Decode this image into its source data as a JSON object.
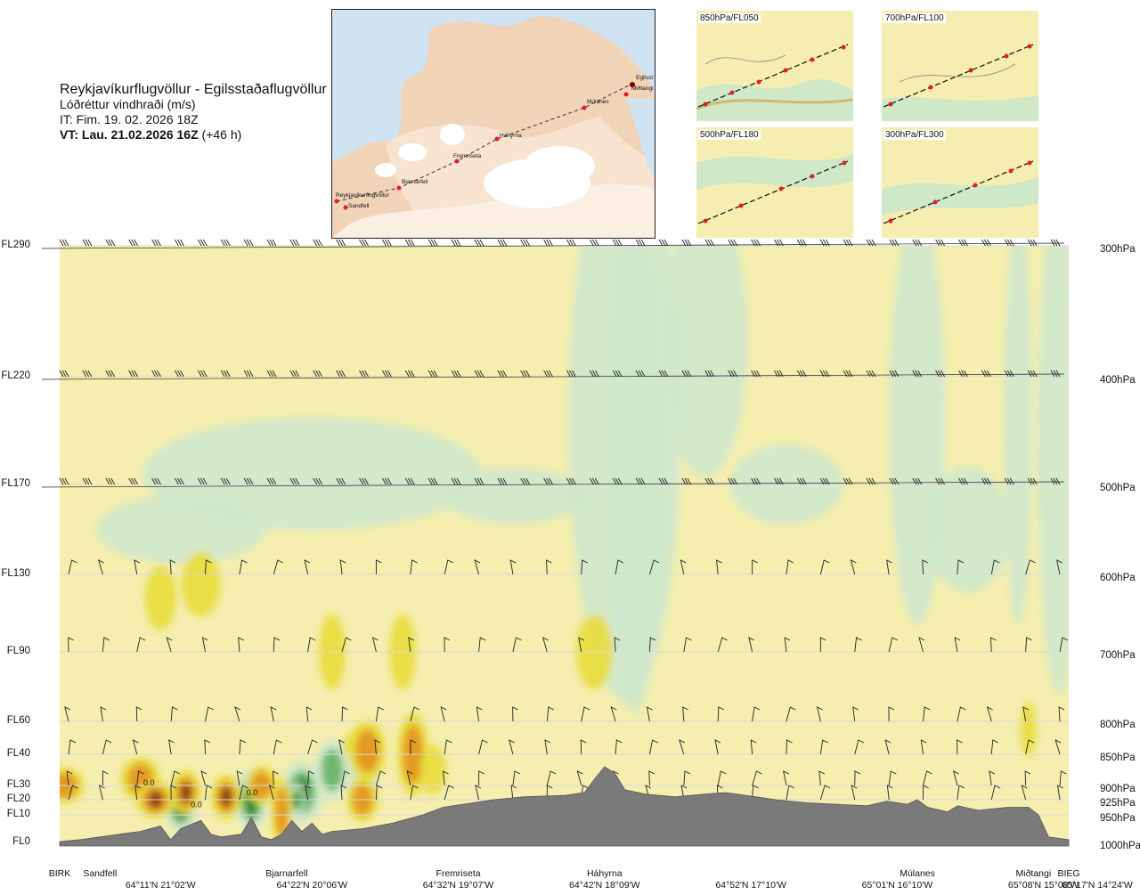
{
  "header": {
    "route": "Reykjavíkurflugvöllur - Egilsstaðaflugvöllur",
    "quantity": "Lóðréttur vindhraði (m/s)",
    "issue_time": "IT: Fim. 19. 02. 2026 18Z",
    "valid_time_bold": "VT: Lau. 21.02.2026 16Z",
    "valid_time_offset": "(+46 h)"
  },
  "map": {
    "waypoints": [
      "Reykjavíkurflugvöllur",
      "Sandfell",
      "Bjarnarfell",
      "Fremriseta",
      "Háhyrna",
      "Múlanes",
      "Miðtangi",
      "Egilsst"
    ]
  },
  "thumbnails": [
    {
      "label": "850hPa/FL050"
    },
    {
      "label": "700hPa/FL100"
    },
    {
      "label": "500hPa/FL180"
    },
    {
      "label": "300hPa/FL300"
    }
  ],
  "chart_data": {
    "type": "heatmap",
    "variable": "Lóðréttur vindhraði (m/s)",
    "y_levels": [
      {
        "fl": "FL290",
        "hpa": "300hPa",
        "z": 290
      },
      {
        "fl": "FL220",
        "hpa": "400hPa",
        "z": 220
      },
      {
        "fl": "FL170",
        "hpa": "500hPa",
        "z": 170
      },
      {
        "fl": "FL130",
        "hpa": "600hPa",
        "z": 130
      },
      {
        "fl": "FL90",
        "hpa": "700hPa",
        "z": 90
      },
      {
        "fl": "FL60",
        "hpa": "800hPa",
        "z": 60
      },
      {
        "fl": "FL40",
        "hpa": "850hPa",
        "z": 40
      },
      {
        "fl": "FL30",
        "hpa": "900hPa",
        "z": 30
      },
      {
        "fl": "FL20",
        "hpa": "925hPa",
        "z": 20
      },
      {
        "fl": "FL10",
        "hpa": "950hPa",
        "z": 10
      },
      {
        "fl": "FL0",
        "hpa": "1000hPa",
        "z": 0
      }
    ],
    "x_waypoints": [
      {
        "name": "BIRK",
        "pos": 0.0
      },
      {
        "name": "Sandfell",
        "pos": 0.04
      },
      {
        "name": "Bjarnarfell",
        "pos": 0.225
      },
      {
        "name": "Fremriseta",
        "pos": 0.395
      },
      {
        "name": "Háhyrna",
        "pos": 0.54
      },
      {
        "name": "Múlanes",
        "pos": 0.85
      },
      {
        "name": "Miðtangi",
        "pos": 0.965
      },
      {
        "name": "BIEG",
        "pos": 1.0
      }
    ],
    "x_coords": [
      {
        "label": "64°11'N 21°02'W",
        "pos": 0.1
      },
      {
        "label": "64°22'N 20°06'W",
        "pos": 0.25
      },
      {
        "label": "64°32'N 19°07'W",
        "pos": 0.395
      },
      {
        "label": "64°42'N 18°09'W",
        "pos": 0.54
      },
      {
        "label": "64°52'N 17°10'W",
        "pos": 0.685
      },
      {
        "label": "65°01'N 16°10'W",
        "pos": 0.83
      },
      {
        "label": "65°08'N 15°08'W",
        "pos": 0.975
      },
      {
        "label": "65°17'N 14°24'W",
        "pos": 1.03
      }
    ],
    "contour_labels": [
      "0.0",
      "0.0",
      "0.0"
    ],
    "terrain_fl": [
      [
        0.0,
        0.3
      ],
      [
        0.02,
        1
      ],
      [
        0.04,
        2
      ],
      [
        0.06,
        3
      ],
      [
        0.08,
        4
      ],
      [
        0.1,
        6
      ],
      [
        0.11,
        1
      ],
      [
        0.12,
        5
      ],
      [
        0.14,
        8
      ],
      [
        0.15,
        3
      ],
      [
        0.16,
        2
      ],
      [
        0.18,
        3
      ],
      [
        0.19,
        9
      ],
      [
        0.2,
        2
      ],
      [
        0.21,
        1
      ],
      [
        0.22,
        3
      ],
      [
        0.23,
        8
      ],
      [
        0.24,
        4
      ],
      [
        0.25,
        7
      ],
      [
        0.26,
        3
      ],
      [
        0.27,
        4
      ],
      [
        0.3,
        5
      ],
      [
        0.33,
        7
      ],
      [
        0.36,
        10
      ],
      [
        0.38,
        15
      ],
      [
        0.4,
        17
      ],
      [
        0.43,
        20
      ],
      [
        0.46,
        22
      ],
      [
        0.5,
        23
      ],
      [
        0.52,
        25
      ],
      [
        0.53,
        32
      ],
      [
        0.54,
        36
      ],
      [
        0.55,
        34
      ],
      [
        0.56,
        27
      ],
      [
        0.58,
        24
      ],
      [
        0.61,
        22
      ],
      [
        0.64,
        24
      ],
      [
        0.66,
        25
      ],
      [
        0.69,
        22
      ],
      [
        0.71,
        20
      ],
      [
        0.74,
        18
      ],
      [
        0.77,
        17
      ],
      [
        0.8,
        16
      ],
      [
        0.82,
        19
      ],
      [
        0.84,
        17
      ],
      [
        0.85,
        20
      ],
      [
        0.86,
        15
      ],
      [
        0.88,
        12
      ],
      [
        0.89,
        16
      ],
      [
        0.91,
        13
      ],
      [
        0.94,
        15
      ],
      [
        0.96,
        15
      ],
      [
        0.97,
        10
      ],
      [
        0.98,
        2
      ],
      [
        1.0,
        1
      ]
    ],
    "green_blobs": [
      [
        0.12,
        16,
        0.012,
        9,
        0.9
      ],
      [
        0.19,
        20,
        0.012,
        12,
        0.9
      ],
      [
        0.24,
        25,
        0.015,
        14,
        0.9
      ],
      [
        0.235,
        20,
        0.006,
        6,
        0.9
      ],
      [
        0.27,
        35,
        0.012,
        8,
        0.6
      ],
      [
        0.3,
        35,
        0.012,
        10,
        0.5
      ],
      [
        0.56,
        200,
        0.04,
        100,
        0.25
      ],
      [
        0.57,
        180,
        0.02,
        90,
        0.25
      ],
      [
        0.64,
        240,
        0.03,
        50,
        0.2
      ],
      [
        0.85,
        200,
        0.02,
        70,
        0.25
      ],
      [
        0.95,
        200,
        0.01,
        70,
        0.25
      ],
      [
        0.99,
        190,
        0.015,
        90,
        0.25
      ],
      [
        0.25,
        175,
        0.12,
        18,
        0.25
      ],
      [
        0.12,
        150,
        0.06,
        10,
        0.2
      ],
      [
        0.45,
        165,
        0.05,
        8,
        0.25
      ],
      [
        0.72,
        170,
        0.04,
        12,
        0.2
      ],
      [
        0.9,
        150,
        0.03,
        20,
        0.18
      ]
    ],
    "yellow_blobs": [
      [
        0.005,
        30,
        0.015,
        8,
        0.8
      ],
      [
        0.08,
        32,
        0.015,
        8,
        0.8
      ],
      [
        0.095,
        20,
        0.015,
        8,
        0.9
      ],
      [
        0.125,
        25,
        0.012,
        10,
        0.9
      ],
      [
        0.165,
        22,
        0.012,
        10,
        0.9
      ],
      [
        0.2,
        30,
        0.012,
        9,
        0.8
      ],
      [
        0.22,
        12,
        0.008,
        10,
        0.8
      ],
      [
        0.3,
        45,
        0.015,
        6,
        0.6
      ],
      [
        0.3,
        20,
        0.012,
        10,
        0.7
      ],
      [
        0.305,
        42,
        0.014,
        8,
        0.7
      ],
      [
        0.35,
        40,
        0.012,
        10,
        0.7
      ],
      [
        0.37,
        35,
        0.01,
        6,
        0.6
      ],
      [
        0.1,
        118,
        0.012,
        12,
        0.35
      ],
      [
        0.14,
        125,
        0.015,
        12,
        0.35
      ],
      [
        0.27,
        90,
        0.01,
        12,
        0.35
      ],
      [
        0.34,
        90,
        0.01,
        12,
        0.35
      ],
      [
        0.53,
        90,
        0.014,
        12,
        0.4
      ],
      [
        0.96,
        55,
        0.006,
        12,
        0.35
      ]
    ],
    "wind_barb_rows": [
      "FL290",
      "FL220",
      "FL170",
      "FL130",
      "FL90",
      "FL60",
      "FL40",
      "FL30",
      "FL20"
    ]
  }
}
